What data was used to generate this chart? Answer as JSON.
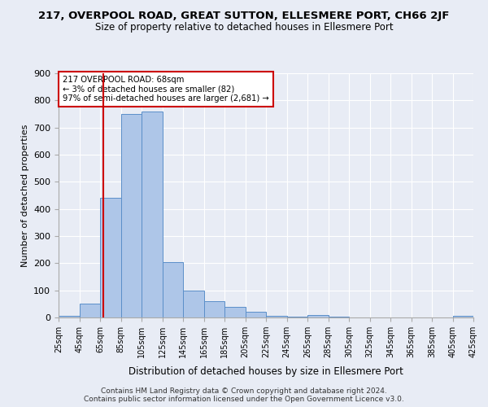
{
  "title": "217, OVERPOOL ROAD, GREAT SUTTON, ELLESMERE PORT, CH66 2JF",
  "subtitle": "Size of property relative to detached houses in Ellesmere Port",
  "xlabel": "Distribution of detached houses by size in Ellesmere Port",
  "ylabel": "Number of detached properties",
  "footer1": "Contains HM Land Registry data © Crown copyright and database right 2024.",
  "footer2": "Contains public sector information licensed under the Open Government Licence v3.0.",
  "annotation_line1": "217 OVERPOOL ROAD: 68sqm",
  "annotation_line2": "← 3% of detached houses are smaller (82)",
  "annotation_line3": "97% of semi-detached houses are larger (2,681) →",
  "property_size": 68,
  "bin_edges": [
    25,
    45,
    65,
    85,
    105,
    125,
    145,
    165,
    185,
    205,
    225,
    245,
    265,
    285,
    305,
    325,
    345,
    365,
    385,
    405,
    425
  ],
  "bar_heights": [
    5,
    50,
    440,
    750,
    760,
    205,
    100,
    60,
    40,
    20,
    5,
    3,
    10,
    2,
    0,
    0,
    0,
    0,
    0,
    5
  ],
  "bar_color": "#aec6e8",
  "bar_edge_color": "#5b8fc9",
  "vline_color": "#cc0000",
  "vline_x": 68,
  "bg_color": "#e8ecf5",
  "plot_bg_color": "#e8ecf5",
  "grid_color": "#ffffff",
  "annotation_box_color": "#ffffff",
  "annotation_box_edge_color": "#cc0000",
  "ylim": [
    0,
    900
  ],
  "yticks": [
    0,
    100,
    200,
    300,
    400,
    500,
    600,
    700,
    800,
    900
  ]
}
